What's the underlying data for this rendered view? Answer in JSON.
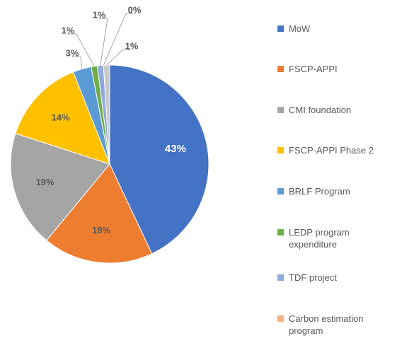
{
  "chart_data": {
    "type": "pie",
    "categories": [
      "MoW",
      "FSCP-APPI",
      "CMI foundation",
      "FSCP-APPI Phase 2",
      "BRLF Program",
      "LEDP program expenditure",
      "TDF project",
      "Carbon estimation program",
      null
    ],
    "values": [
      43,
      18,
      19,
      14,
      3,
      1,
      1,
      0,
      1
    ],
    "value_labels": [
      "43%",
      "18%",
      "19%",
      "14%",
      "3%",
      "1%",
      "1%",
      "0%",
      "1%"
    ],
    "colors": [
      "#4472c4",
      "#ed7d31",
      "#a5a5a5",
      "#ffc000",
      "#5b9bd5",
      "#70ad47",
      "#8faadc",
      "#f4b183",
      "#c9c9c9"
    ],
    "legend": "right"
  }
}
